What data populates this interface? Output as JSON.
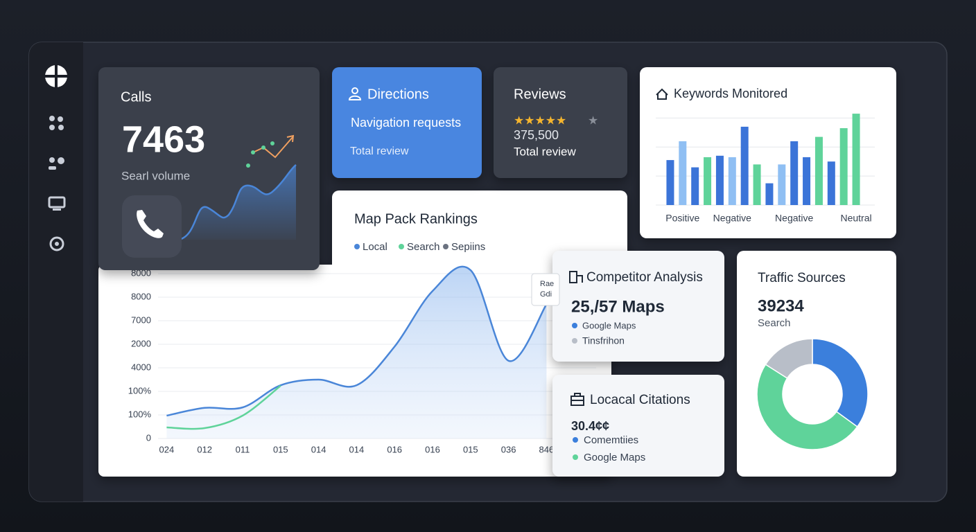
{
  "calls": {
    "title": "Calls",
    "value": "7463",
    "caption": "Searl volume"
  },
  "directions": {
    "title": "Directions",
    "subtitle": "Navigation requests",
    "caption": "Total review"
  },
  "reviews": {
    "title": "Reviews",
    "value": "375,500",
    "caption": "Total review"
  },
  "keywords": {
    "type": "bar",
    "title": "Keywords Monitored",
    "categories": [
      null,
      "Positive",
      null,
      null,
      null,
      "Negative",
      null,
      null,
      null,
      null,
      "Negative",
      null,
      null,
      null,
      null,
      "Neutral"
    ],
    "values": [
      1.55,
      2.2,
      1.3,
      1.65,
      1.7,
      1.65,
      2.7,
      1.4,
      0.75,
      1.4,
      2.2,
      1.65,
      2.35,
      1.5,
      2.65,
      3.15
    ],
    "colors": [
      "#3b74d8",
      "#8fbff3",
      "#3b74d8",
      "#5fd39a",
      "#3b74d8",
      "#8fbff3",
      "#3b74d8",
      "#5fd39a",
      "#3b74d8",
      "#8fbff3",
      "#3b74d8",
      "#3b74d8",
      "#5fd39a",
      "#3b74d8",
      "#5fd39a",
      "#5fd39a"
    ],
    "ylim": [
      0,
      3.2
    ],
    "yticks": [
      0,
      1,
      2,
      3
    ],
    "grid": true
  },
  "map_pack": {
    "type": "line",
    "title": "Map Pack Rankings",
    "categories": [
      "024",
      "012",
      "011",
      "015",
      "014",
      "014",
      "016",
      "016",
      "015",
      "036",
      "846"
    ],
    "series": [
      {
        "name": "Local",
        "color": "#4a86d8",
        "values": [
          0.97,
          1.3,
          1.32,
          2.26,
          2.5,
          2.26,
          3.9,
          6.26,
          7.15,
          3.3,
          5.7
        ]
      },
      {
        "name": "Search",
        "color": "#5fd39a",
        "values": [
          0.47,
          0.44,
          0.97,
          2.24,
          null,
          null,
          null,
          null,
          null,
          null,
          null
        ]
      },
      {
        "name": "Sepiins",
        "color": "#6b7280",
        "values": [
          null,
          null,
          null,
          null,
          null,
          null,
          null,
          null,
          null,
          null,
          null
        ]
      }
    ],
    "ylim": [
      0,
      7
    ],
    "yticks": [
      {
        "value": 0,
        "label": "0"
      },
      {
        "value": 1,
        "label": "100%"
      },
      {
        "value": 2,
        "label": "100%"
      },
      {
        "value": 3,
        "label": "4000"
      },
      {
        "value": 4,
        "label": "2000"
      },
      {
        "value": 5,
        "label": "7000"
      },
      {
        "value": 6,
        "label": "8000"
      },
      {
        "value": 7,
        "label": "8000"
      }
    ],
    "grid": true,
    "tooltip": [
      "Rae",
      "Gdi"
    ]
  },
  "competitor": {
    "title": "Competitor Analysis",
    "value": "25,/57 Maps",
    "legend": [
      "Google Maps",
      "Tinsfrihon"
    ]
  },
  "citations": {
    "title": "Locacal Citations",
    "value": "30.4¢¢",
    "legend": [
      "Comemtiies",
      "Google Maps"
    ]
  },
  "traffic": {
    "title": "Traffic Sources",
    "value": "39234",
    "caption": "Search",
    "chart": {
      "type": "donut",
      "values": [
        35,
        49,
        16
      ],
      "colors": [
        "#3b7fdc",
        "#5fd39a",
        "#b8bec8"
      ]
    }
  }
}
